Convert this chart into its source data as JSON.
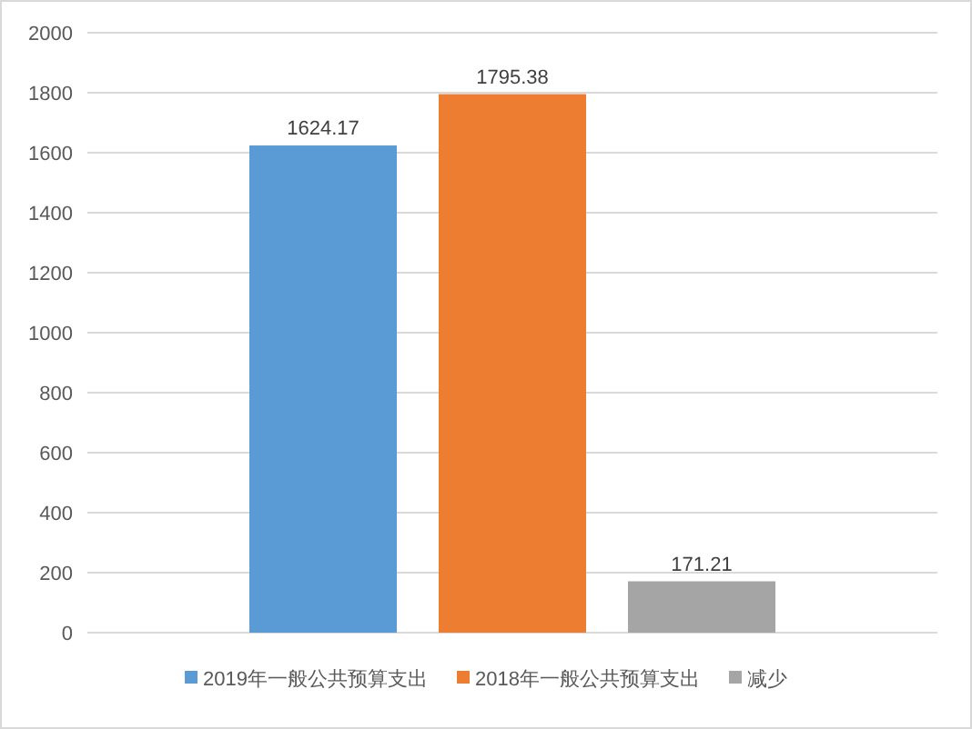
{
  "chart_data": {
    "type": "bar",
    "categories": [
      null
    ],
    "series": [
      {
        "name": "2019年一般公共预算支出",
        "color": "#5b9bd5",
        "values": [
          1624.17
        ]
      },
      {
        "name": "2018年一般公共预算支出",
        "color": "#ed7d31",
        "values": [
          1795.38
        ]
      },
      {
        "name": "减少",
        "color": "#a5a5a5",
        "values": [
          171.21
        ]
      }
    ],
    "ylim": [
      0,
      2000
    ],
    "yticks": [
      0,
      200,
      400,
      600,
      800,
      1000,
      1200,
      1400,
      1600,
      1800,
      2000
    ],
    "grid": "y",
    "legend": "bottom",
    "data_labels": true
  }
}
